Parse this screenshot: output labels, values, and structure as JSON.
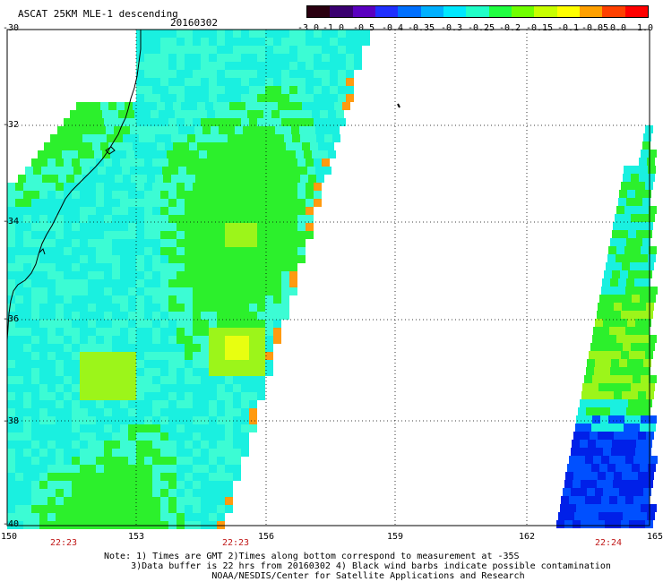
{
  "header": {
    "title": "ASCAT 25KM MLE-1 descending",
    "date": "20160302"
  },
  "colorbar": {
    "colors": [
      "#2a0010",
      "#3a0070",
      "#5a00c0",
      "#2030ff",
      "#0070ff",
      "#00b0ff",
      "#00e8ff",
      "#20ffc8",
      "#20ff40",
      "#70ff00",
      "#c8ff00",
      "#ffff00",
      "#ffa000",
      "#ff4000",
      "#ff0000"
    ],
    "ticks": [
      "-3.0",
      "-1.0",
      "-0.5",
      "-0.4",
      "-0.35",
      "-0.3",
      "-0.25",
      "-0.2",
      "-0.15",
      "-0.1",
      "-0.05",
      "0.0",
      "1.0"
    ]
  },
  "map": {
    "lat_labels": [
      "-30",
      "-32",
      "-34",
      "-36",
      "-38",
      "-40"
    ],
    "lon_labels": [
      "150",
      "153",
      "156",
      "159",
      "162",
      "165"
    ],
    "time_labels": [
      "22:23",
      "22:23",
      "22:24"
    ],
    "colors": {
      "green": "#2cf02c",
      "yellowgreen": "#9cf51a",
      "cyan": "#1af0e0",
      "lightcyan": "#3cfcd4",
      "blue": "#0050ff",
      "deepblue": "#0020e8",
      "yellow": "#e8ff10",
      "orange": "#ff9a10",
      "coast": "#000000",
      "grid": "#000000"
    }
  },
  "notes": {
    "line1": "Note: 1) Times are GMT 2)Times along bottom correspond to measurement at -35S",
    "line2": "     3)Data buffer is 22 hrs from 20160302 4) Black wind barbs indicate possible contamination",
    "line3": "                    NOAA/NESDIS/Center for Satellite Applications and Research"
  }
}
